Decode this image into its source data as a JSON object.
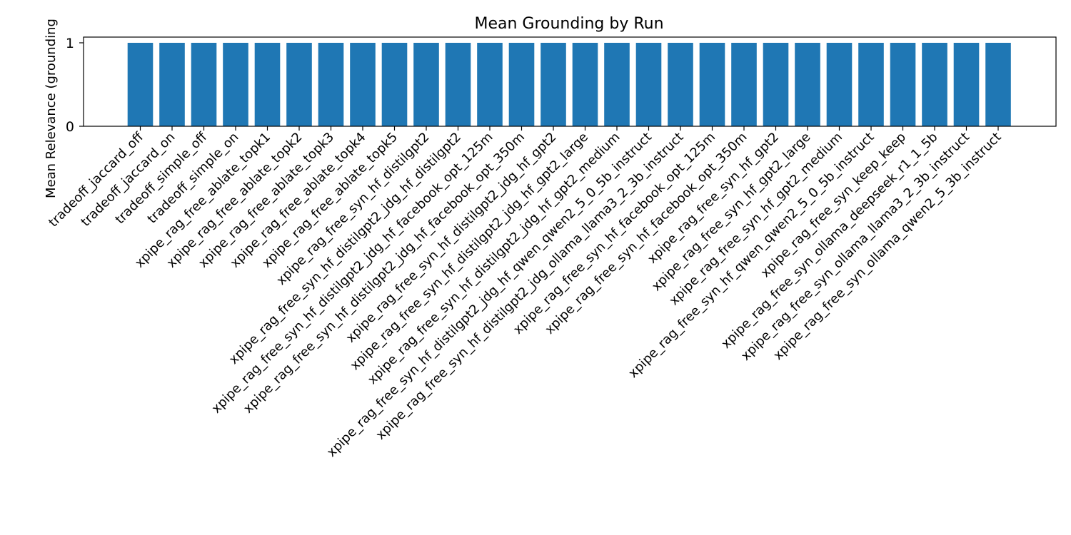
{
  "chart_data": {
    "type": "bar",
    "title": "Mean Grounding by Run",
    "xlabel": "",
    "ylabel": "Mean Relevance (grounding",
    "ylim": [
      0,
      1
    ],
    "yticks": [
      0,
      1
    ],
    "grid": false,
    "bar_color": "#1f77b4",
    "categories": [
      "tradeoff_jaccard_off",
      "tradeoff_jaccard_on",
      "tradeoff_simple_off",
      "tradeoff_simple_on",
      "xpipe_rag_free_ablate_topk1",
      "xpipe_rag_free_ablate_topk2",
      "xpipe_rag_free_ablate_topk3",
      "xpipe_rag_free_ablate_topk4",
      "xpipe_rag_free_ablate_topk5",
      "xpipe_rag_free_syn_hf_distilgpt2",
      "xpipe_rag_free_syn_hf_distilgpt2_jdg_hf_distilgpt2",
      "xpipe_rag_free_syn_hf_distilgpt2_jdg_hf_facebook_opt_125m",
      "xpipe_rag_free_syn_hf_distilgpt2_jdg_hf_facebook_opt_350m",
      "xpipe_rag_free_syn_hf_distilgpt2_jdg_hf_gpt2",
      "xpipe_rag_free_syn_hf_distilgpt2_jdg_hf_gpt2_large",
      "xpipe_rag_free_syn_hf_distilgpt2_jdg_hf_gpt2_medium",
      "xpipe_rag_free_syn_hf_distilgpt2_jdg_hf_qwen_qwen2_5_0_5b_instruct",
      "xpipe_rag_free_syn_hf_distilgpt2_jdg_ollama_llama3_2_3b_instruct",
      "xpipe_rag_free_syn_hf_facebook_opt_125m",
      "xpipe_rag_free_syn_hf_facebook_opt_350m",
      "xpipe_rag_free_syn_hf_gpt2",
      "xpipe_rag_free_syn_hf_gpt2_large",
      "xpipe_rag_free_syn_hf_gpt2_medium",
      "xpipe_rag_free_syn_hf_qwen_qwen2_5_0_5b_instruct",
      "xpipe_rag_free_syn_keep_keep",
      "xpipe_rag_free_syn_ollama_deepseek_r1_1_5b",
      "xpipe_rag_free_syn_ollama_llama3_2_3b_instruct",
      "xpipe_rag_free_syn_ollama_qwen2_5_3b_instruct"
    ],
    "values": [
      1,
      1,
      1,
      1,
      1,
      1,
      1,
      1,
      1,
      1,
      1,
      1,
      1,
      1,
      1,
      1,
      1,
      1,
      1,
      1,
      1,
      1,
      1,
      1,
      1,
      1,
      1,
      1
    ]
  }
}
